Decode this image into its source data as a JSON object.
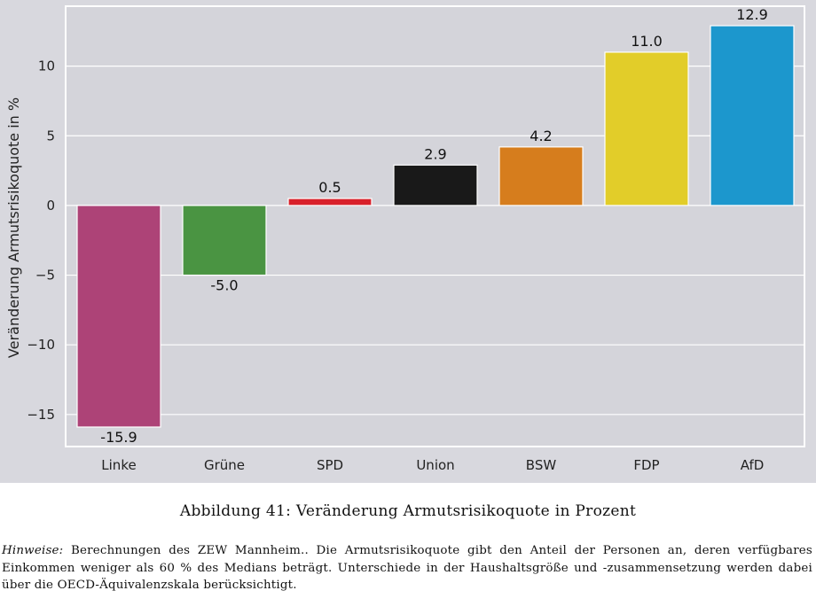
{
  "chart_data": {
    "type": "bar",
    "title": "",
    "xlabel": "",
    "ylabel": "Veränderung Armutsrisikoquote in %",
    "categories": [
      "Linke",
      "Grüne",
      "SPD",
      "Union",
      "BSW",
      "FDP",
      "AfD"
    ],
    "values": [
      -15.9,
      -5.0,
      0.5,
      2.9,
      4.2,
      11.0,
      12.9
    ],
    "value_labels": [
      "-15.9",
      "-5.0",
      "0.5",
      "2.9",
      "4.2",
      "11.0",
      "12.9"
    ],
    "colors": [
      "#ad4377",
      "#4a9442",
      "#d8202a",
      "#191919",
      "#d67d1d",
      "#e2cd29",
      "#1c97cd"
    ],
    "yticks": [
      -15,
      -10,
      -5,
      0,
      5,
      10
    ],
    "ytick_labels": [
      "−15",
      "−10",
      "−5",
      "0",
      "5",
      "10"
    ],
    "ylim": [
      -17.3,
      14.3
    ],
    "grid": true,
    "background_color": "#d8d8de",
    "panel_color": "#d4d4da",
    "grid_color": "#ffffff"
  },
  "caption": "Abbildung 41: Veränderung Armutsrisikoquote in Prozent",
  "note": {
    "prefix": "Hinweise:",
    "text": " Berechnungen des ZEW Mannheim.. Die Armutsrisikoquote gibt den Anteil der Personen an, deren verfügbares Einkommen weniger als 60 % des Medians beträgt. Unterschiede in der Haushaltsgröße und -zusammensetzung werden dabei über die OECD-Äquivalenzskala berücksichtigt."
  }
}
